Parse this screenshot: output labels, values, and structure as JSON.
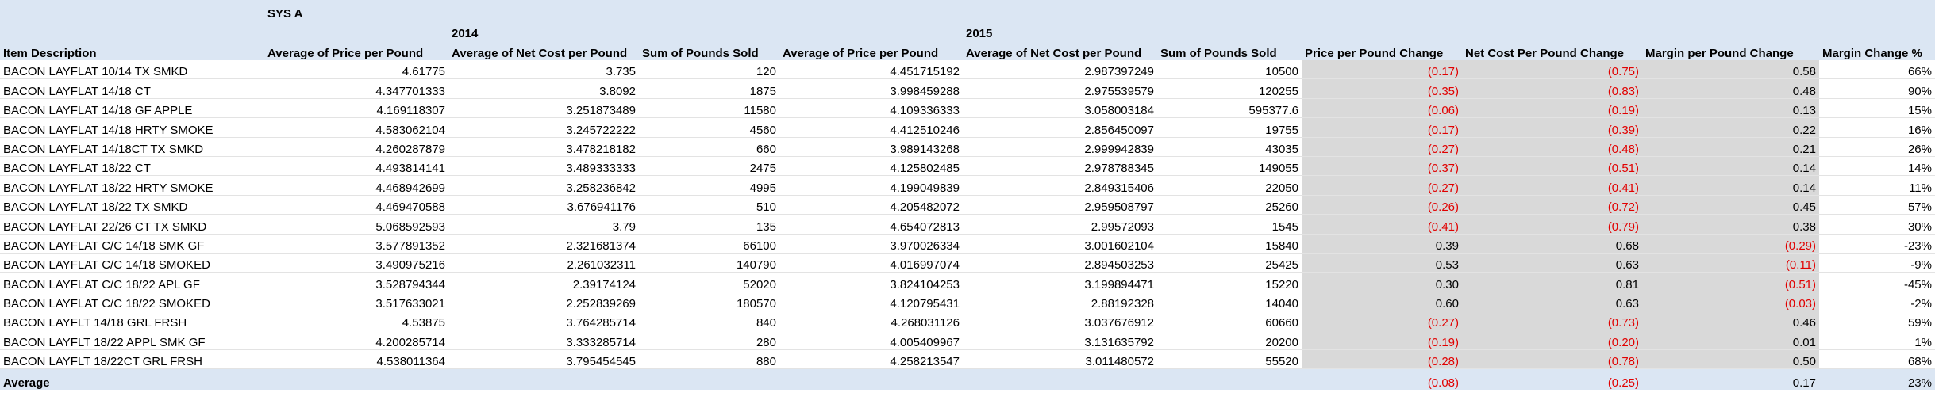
{
  "header": {
    "system_label": "SYS A",
    "year_2014": "2014",
    "year_2015": "2015",
    "columns": [
      "Item Description",
      "Average of Price per Pound",
      "Average of Net Cost per Pound",
      "Sum of Pounds Sold",
      "Average of Price per Pound",
      "Average of Net Cost per Pound",
      "Sum of Pounds Sold",
      "Price per Pound Change",
      "Net Cost Per Pound Change",
      "Margin per Pound Change",
      "Margin Change %"
    ]
  },
  "rows": [
    [
      "BACON LAYFLAT 10/14 TX SMKD",
      "4.61775",
      "3.735",
      "120",
      "4.451715192",
      "2.987397249",
      "10500",
      "(0.17)",
      "(0.75)",
      "0.58",
      "66%"
    ],
    [
      "BACON LAYFLAT 14/18 CT",
      "4.347701333",
      "3.8092",
      "1875",
      "3.998459288",
      "2.975539579",
      "120255",
      "(0.35)",
      "(0.83)",
      "0.48",
      "90%"
    ],
    [
      "BACON LAYFLAT 14/18 GF APPLE",
      "4.169118307",
      "3.251873489",
      "11580",
      "4.109336333",
      "3.058003184",
      "595377.6",
      "(0.06)",
      "(0.19)",
      "0.13",
      "15%"
    ],
    [
      "BACON LAYFLAT 14/18 HRTY SMOKE",
      "4.583062104",
      "3.245722222",
      "4560",
      "4.412510246",
      "2.856450097",
      "19755",
      "(0.17)",
      "(0.39)",
      "0.22",
      "16%"
    ],
    [
      "BACON LAYFLAT 14/18CT TX SMKD",
      "4.260287879",
      "3.478218182",
      "660",
      "3.989143268",
      "2.999942839",
      "43035",
      "(0.27)",
      "(0.48)",
      "0.21",
      "26%"
    ],
    [
      "BACON LAYFLAT 18/22 CT",
      "4.493814141",
      "3.489333333",
      "2475",
      "4.125802485",
      "2.978788345",
      "149055",
      "(0.37)",
      "(0.51)",
      "0.14",
      "14%"
    ],
    [
      "BACON LAYFLAT 18/22 HRTY SMOKE",
      "4.468942699",
      "3.258236842",
      "4995",
      "4.199049839",
      "2.849315406",
      "22050",
      "(0.27)",
      "(0.41)",
      "0.14",
      "11%"
    ],
    [
      "BACON LAYFLAT 18/22 TX SMKD",
      "4.469470588",
      "3.676941176",
      "510",
      "4.205482072",
      "2.959508797",
      "25260",
      "(0.26)",
      "(0.72)",
      "0.45",
      "57%"
    ],
    [
      "BACON LAYFLAT 22/26 CT TX SMKD",
      "5.068592593",
      "3.79",
      "135",
      "4.654072813",
      "2.99572093",
      "1545",
      "(0.41)",
      "(0.79)",
      "0.38",
      "30%"
    ],
    [
      "BACON LAYFLAT C/C 14/18 SMK GF",
      "3.577891352",
      "2.321681374",
      "66100",
      "3.970026334",
      "3.001602104",
      "15840",
      "0.39",
      "0.68",
      "(0.29)",
      "-23%"
    ],
    [
      "BACON LAYFLAT C/C 14/18 SMOKED",
      "3.490975216",
      "2.261032311",
      "140790",
      "4.016997074",
      "2.894503253",
      "25425",
      "0.53",
      "0.63",
      "(0.11)",
      "-9%"
    ],
    [
      "BACON LAYFLAT C/C 18/22 APL GF",
      "3.528794344",
      "2.39174124",
      "52020",
      "3.824104253",
      "3.199894471",
      "15220",
      "0.30",
      "0.81",
      "(0.51)",
      "-45%"
    ],
    [
      "BACON LAYFLAT C/C 18/22 SMOKED",
      "3.517633021",
      "2.252839269",
      "180570",
      "4.120795431",
      "2.88192328",
      "14040",
      "0.60",
      "0.63",
      "(0.03)",
      "-2%"
    ],
    [
      "BACON LAYFLT 14/18 GRL FRSH",
      "4.53875",
      "3.764285714",
      "840",
      "4.268031126",
      "3.037676912",
      "60660",
      "(0.27)",
      "(0.73)",
      "0.46",
      "59%"
    ],
    [
      "BACON LAYFLT 18/22 APPL SMK GF",
      "4.200285714",
      "3.333285714",
      "280",
      "4.005409967",
      "3.131635792",
      "20200",
      "(0.19)",
      "(0.20)",
      "0.01",
      "1%"
    ],
    [
      "BACON LAYFLT 18/22CT GRL FRSH",
      "4.538011364",
      "3.795454545",
      "880",
      "4.258213547",
      "3.011480572",
      "55520",
      "(0.28)",
      "(0.78)",
      "0.50",
      "68%"
    ]
  ],
  "average": {
    "label": "Average",
    "price_change": "(0.08)",
    "cost_change": "(0.25)",
    "margin_change": "0.17",
    "margin_pct": "23%"
  },
  "colors": {
    "header_bg": "#dbe6f3",
    "change_bg": "#d9d9d9",
    "negative": "#e10000"
  }
}
